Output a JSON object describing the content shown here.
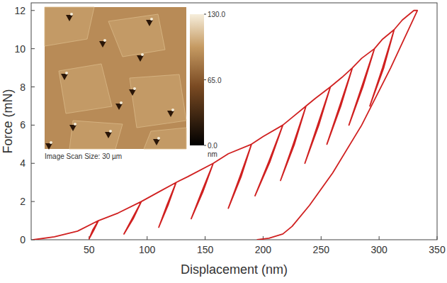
{
  "chart_data": {
    "type": "line",
    "x_label": "Displacement (nm)",
    "y_label": "Force (mN)",
    "x": [
      2,
      20,
      40,
      58,
      54,
      50,
      53,
      58,
      75,
      95,
      88,
      80,
      87,
      95,
      110,
      125,
      118,
      110,
      117,
      125,
      135,
      157,
      148,
      138,
      147,
      157,
      170,
      190,
      181,
      170,
      180,
      190,
      200,
      217,
      206,
      193,
      205,
      217,
      225,
      237,
      227,
      215,
      226,
      237,
      245,
      258,
      248,
      236,
      247,
      258,
      268,
      277,
      267,
      255,
      266,
      277,
      285,
      296,
      286,
      274,
      285,
      296,
      303,
      313,
      304,
      292,
      303,
      313,
      320,
      330,
      333,
      310,
      285,
      260,
      240,
      225,
      217,
      205,
      195
    ],
    "series": [
      {
        "color": "#d02020",
        "values": [
          0,
          0.15,
          0.45,
          1.0,
          0.5,
          0.05,
          0.5,
          1.0,
          1.4,
          2.0,
          1.1,
          0.3,
          1.1,
          2.0,
          2.5,
          3.0,
          1.8,
          0.65,
          1.8,
          3.0,
          3.3,
          4.0,
          2.5,
          1.1,
          2.5,
          4.0,
          4.5,
          5.0,
          3.3,
          1.65,
          3.3,
          5.0,
          5.4,
          6.0,
          4.1,
          2.3,
          4.1,
          6.0,
          6.4,
          7.0,
          5.0,
          3.1,
          5.0,
          7.0,
          7.4,
          8.0,
          6.0,
          4.0,
          6.0,
          8.0,
          8.5,
          9.0,
          7.0,
          5.0,
          7.0,
          9.0,
          9.5,
          10.0,
          8.0,
          6.0,
          8.0,
          10.0,
          10.5,
          11.0,
          9.0,
          7.0,
          9.0,
          11.0,
          11.5,
          12.0,
          12.0,
          9.0,
          6.0,
          3.5,
          1.8,
          0.7,
          0.3,
          0.08,
          0
        ]
      }
    ],
    "xlim": [
      0,
      350
    ],
    "xticks": [
      50,
      100,
      150,
      200,
      250,
      300,
      350
    ],
    "ylim": [
      0,
      12.4
    ],
    "yticks": [
      0,
      2,
      4,
      6,
      8,
      10,
      12
    ],
    "grid": false
  },
  "inset": {
    "caption": "Image Scan Size: 30 µm",
    "colorbar": {
      "range": [
        0,
        130
      ],
      "ticks": [
        {
          "value": 0,
          "label": "0.0"
        },
        {
          "value": 65,
          "label": "65.0"
        },
        {
          "value": 130,
          "label": "130.0"
        }
      ],
      "unit": "nm"
    }
  }
}
